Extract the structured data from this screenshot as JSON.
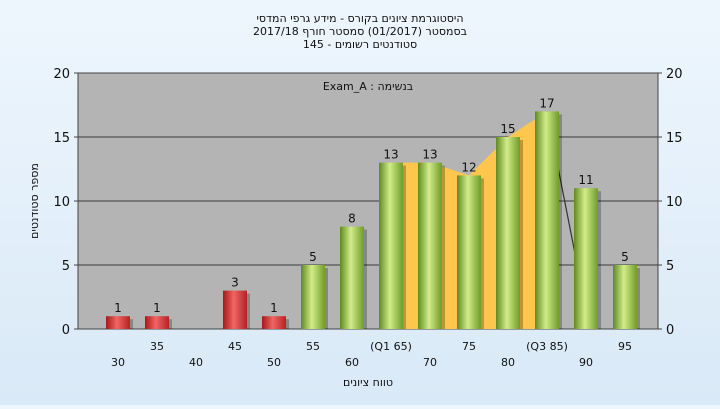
{
  "chart_data": {
    "type": "bar",
    "title_lines": [
      "היסטוגרמת ציונים בקורס - מידע גרפי המדסי",
      "בסמסטר  (01/2017)  סמסטר חורף 2017/18",
      "סטודנטים רשומים - 145"
    ],
    "annotation": "Exam_A : בנשימה",
    "xlabel": "טווח ציונים",
    "ylabel": "מספר סטודנטים",
    "ylim": [
      0,
      20
    ],
    "yticks": [
      0,
      5,
      10,
      15,
      20
    ],
    "categories": [
      "30",
      "35",
      "40",
      "45",
      "50",
      "55",
      "60",
      "(Q1 65)",
      "70",
      "75",
      "80",
      "(Q3 85)",
      "90",
      "95"
    ],
    "values": [
      1,
      1,
      0,
      3,
      1,
      5,
      8,
      13,
      13,
      12,
      15,
      17,
      11,
      5
    ],
    "data_labels": [
      "1",
      "1",
      "",
      "3",
      "1",
      "5",
      "8",
      "13",
      "13",
      "12",
      "15",
      "17",
      "11",
      "5"
    ],
    "bar_colors": [
      "#d93a3a",
      "#d93a3a",
      "#d93a3a",
      "#d93a3a",
      "#d93a3a",
      "#8fbd3a",
      "#8fbd3a",
      "#8fbd3a",
      "#8fbd3a",
      "#8fbd3a",
      "#8fbd3a",
      "#8fbd3a",
      "#8fbd3a",
      "#8fbd3a"
    ],
    "interquartile_band": {
      "from_category": "(Q1 65)",
      "to_category": "(Q3 85)",
      "color": "#ffc64d"
    },
    "grid": true,
    "plot_background": "#b4b4b4"
  }
}
